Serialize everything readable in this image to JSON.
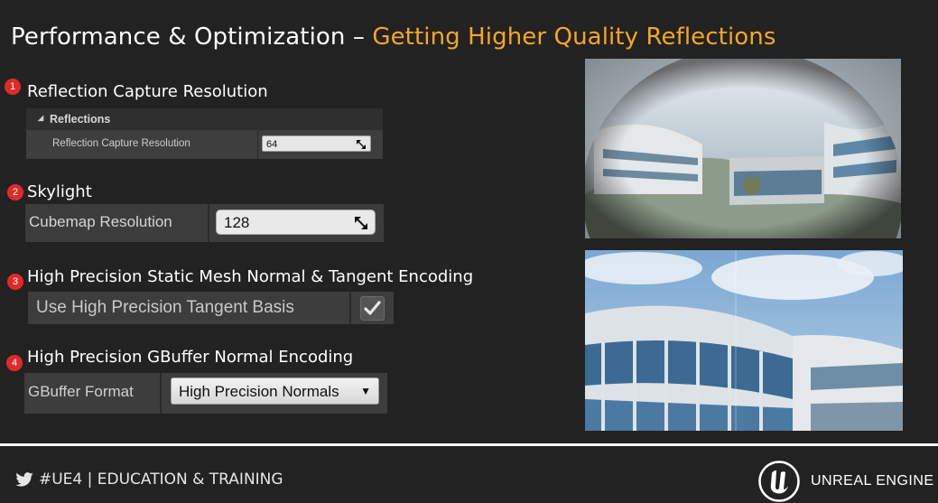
{
  "title": {
    "main": "Performance & Optimization – ",
    "highlight": "Getting Higher Quality Reflections"
  },
  "sections": [
    {
      "number": "1",
      "label": "Reflection Capture Resolution"
    },
    {
      "number": "2",
      "label": "Skylight"
    },
    {
      "number": "3",
      "label": "High Precision Static Mesh Normal & Tangent Encoding"
    },
    {
      "number": "4",
      "label": "High Precision GBuffer Normal Encoding"
    }
  ],
  "panel1": {
    "header": "Reflections",
    "property": "Reflection Capture Resolution",
    "value": "64"
  },
  "panel2": {
    "property": "Cubemap Resolution",
    "value": "128"
  },
  "panel3": {
    "property": "Use High Precision Tangent Basis",
    "checked": true
  },
  "panel4": {
    "property": "GBuffer Format",
    "value": "High Precision Normals"
  },
  "footer": {
    "left": "#UE4 | EDUCATION & TRAINING",
    "right": "UNREAL ENGINE"
  },
  "icons": [
    "twitter-icon",
    "unreal-engine-logo-icon",
    "spinner-arrows-icon",
    "checkmark-icon",
    "dropdown-caret-icon",
    "collapse-triangle-icon"
  ],
  "colors": {
    "background": "#222222",
    "highlight": "#f5a623",
    "badge": "#e02a2a"
  }
}
